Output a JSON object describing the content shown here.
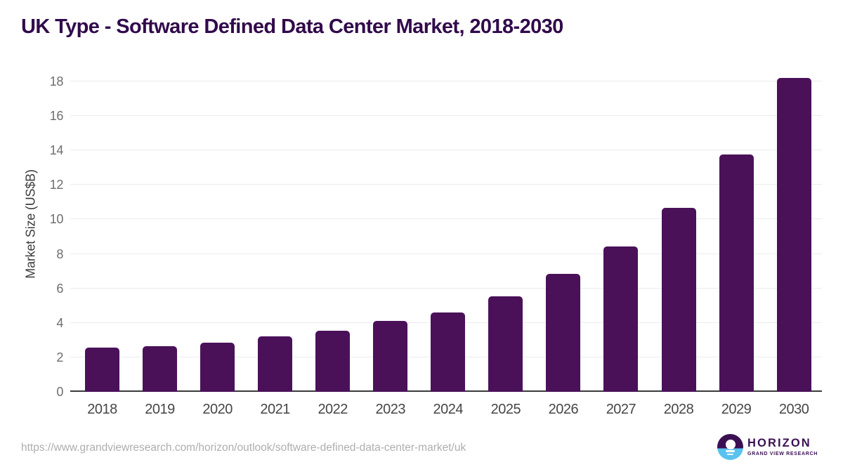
{
  "chart_data": {
    "type": "bar",
    "title": "UK Type - Software Defined Data Center Market, 2018-2030",
    "categories": [
      "2018",
      "2019",
      "2020",
      "2021",
      "2022",
      "2023",
      "2024",
      "2025",
      "2026",
      "2027",
      "2028",
      "2029",
      "2030"
    ],
    "values": [
      2.55,
      2.65,
      2.85,
      3.2,
      3.55,
      4.1,
      4.6,
      5.55,
      6.85,
      8.45,
      10.65,
      13.75,
      18.2
    ],
    "xlabel": "",
    "ylabel": "Market Size (US$B)",
    "ylim": [
      0,
      18
    ],
    "yticks": [
      0,
      2,
      4,
      6,
      8,
      10,
      12,
      14,
      16,
      18
    ],
    "grid": true,
    "legend": "none",
    "bar_color": "#4a1159"
  },
  "footer": {
    "source_url": "https://www.grandviewresearch.com/horizon/outlook/software-defined-data-center-market/uk",
    "logo": {
      "name": "HORIZON",
      "subtitle": "GRAND VIEW RESEARCH"
    }
  },
  "colors": {
    "title_text": "#310a4b",
    "bar": "#4a1159",
    "logo_purple": "#3b1053",
    "logo_blue": "#59c2ee",
    "gridline": "#ececec",
    "axis_line": "#3a3a3a",
    "y_tick_text": "#6e6e6e",
    "x_tick_text": "#464646",
    "url_text": "#aeaeae"
  }
}
